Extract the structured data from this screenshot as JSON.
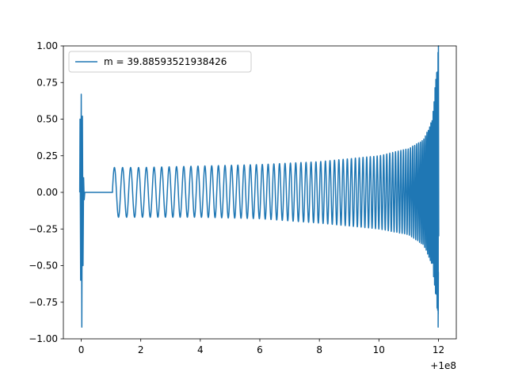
{
  "chart_data": {
    "type": "line",
    "title": "",
    "xlabel": "",
    "ylabel": "",
    "x_offset_label": "+1e8",
    "xlim": [
      -0.6,
      12.6
    ],
    "ylim": [
      -1.0,
      1.0
    ],
    "x_ticks": [
      0,
      2,
      4,
      6,
      8,
      10,
      12
    ],
    "y_ticks": [
      -1.0,
      -0.75,
      -0.5,
      -0.25,
      0.0,
      0.25,
      0.5,
      0.75,
      1.0
    ],
    "x_tick_labels": [
      "0",
      "2",
      "4",
      "6",
      "8",
      "10",
      "12"
    ],
    "y_tick_labels": [
      "−1.00",
      "−0.75",
      "−0.50",
      "−0.25",
      "0.00",
      "0.25",
      "0.50",
      "0.75",
      "1.00"
    ],
    "grid": false,
    "legend_position": "upper-left",
    "series": [
      {
        "name": "m = 39.88593521938426",
        "color": "#1f77b4",
        "envelope_points": [
          {
            "x": 0.0,
            "lower": -0.92,
            "upper": 0.67
          },
          {
            "x": 1.05,
            "lower": -0.17,
            "upper": 0.17
          },
          {
            "x": 2.0,
            "lower": -0.17,
            "upper": 0.17
          },
          {
            "x": 4.0,
            "lower": -0.17,
            "upper": 0.18
          },
          {
            "x": 6.0,
            "lower": -0.18,
            "upper": 0.19
          },
          {
            "x": 8.0,
            "lower": -0.21,
            "upper": 0.21
          },
          {
            "x": 10.0,
            "lower": -0.25,
            "upper": 0.25
          },
          {
            "x": 11.0,
            "lower": -0.29,
            "upper": 0.3
          },
          {
            "x": 11.5,
            "lower": -0.36,
            "upper": 0.36
          },
          {
            "x": 11.8,
            "lower": -0.5,
            "upper": 0.5
          },
          {
            "x": 12.0,
            "lower": -0.92,
            "upper": 1.0
          }
        ]
      }
    ]
  }
}
